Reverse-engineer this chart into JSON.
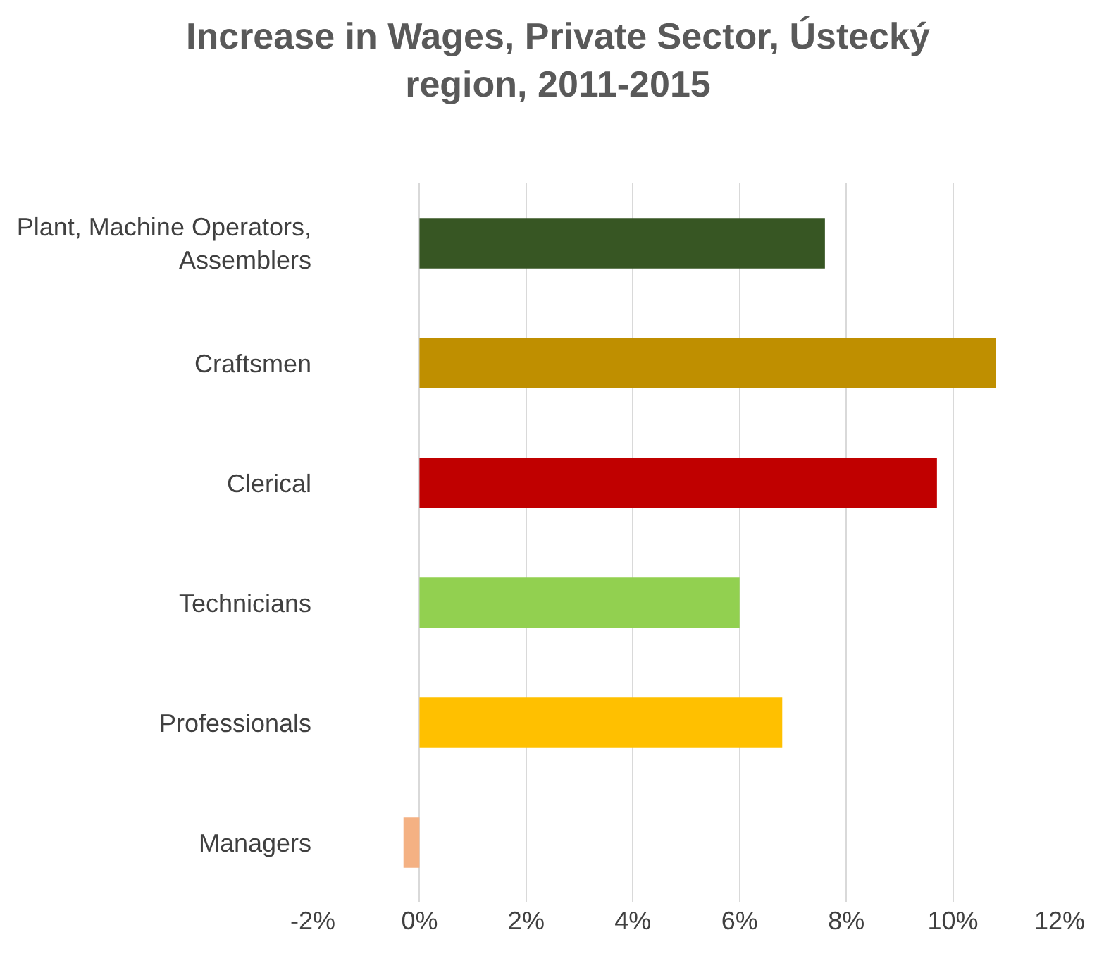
{
  "chart_data": {
    "type": "bar",
    "orientation": "horizontal",
    "title": "Increase in Wages, Private Sector, Ústecký region, 2011-2015",
    "categories": [
      "Plant, Machine Operators, Assemblers",
      "Craftsmen",
      "Clerical",
      "Technicians",
      "Professionals",
      "Managers"
    ],
    "values": [
      7.6,
      10.8,
      9.7,
      6.0,
      6.8,
      -0.3
    ],
    "colors": [
      "#375623",
      "#bf8f00",
      "#c00000",
      "#92d050",
      "#ffc000",
      "#f4b183"
    ],
    "xlim": [
      -2,
      12
    ],
    "xticks": [
      {
        "value": -2,
        "label": "-2%"
      },
      {
        "value": 0,
        "label": "0%"
      },
      {
        "value": 2,
        "label": "2%"
      },
      {
        "value": 4,
        "label": "4%"
      },
      {
        "value": 6,
        "label": "6%"
      },
      {
        "value": 8,
        "label": "8%"
      },
      {
        "value": 10,
        "label": "10%"
      },
      {
        "value": 12,
        "label": "12%"
      }
    ],
    "grid": "x"
  }
}
